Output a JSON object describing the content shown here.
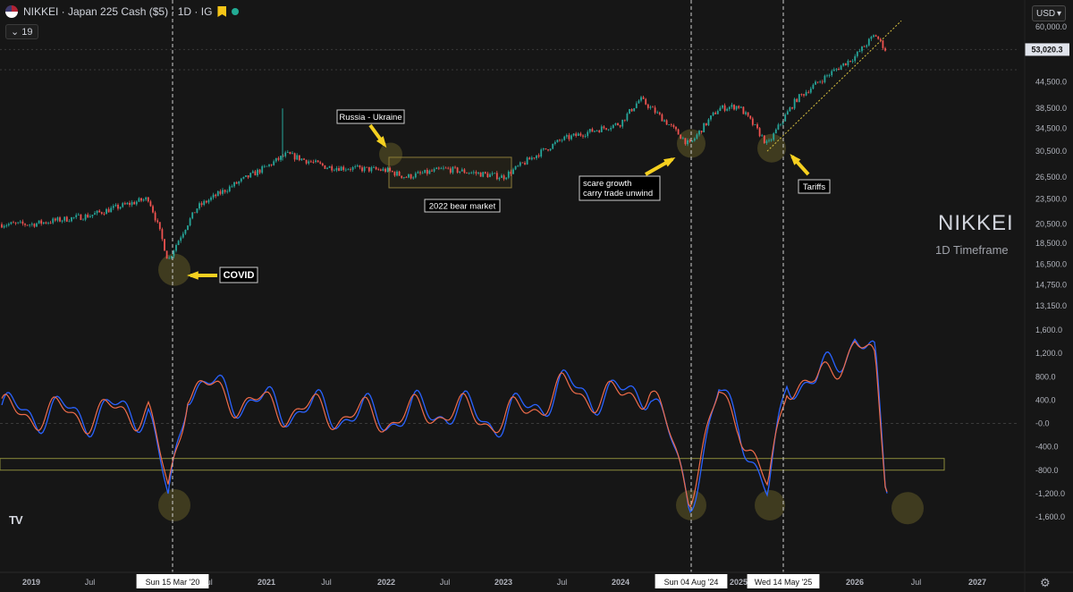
{
  "header": {
    "symbol_title": "NIKKEI · Japan 225 Cash ($5) · 1D · IG",
    "indicator_count": "19"
  },
  "currency": "USD",
  "brand": {
    "title": "NIKKEI",
    "subtitle": "1D Timeframe"
  },
  "price_badge": "53,020.3",
  "price_axis_ticks": [
    "60,000.0",
    "53,020.3",
    "44,500.0",
    "38,500.0",
    "34,500.0",
    "30,500.0",
    "26,500.0",
    "23,500.0",
    "20,500.0",
    "18,500.0",
    "16,500.0",
    "14,750.0",
    "13,150.0"
  ],
  "osc_axis_ticks": [
    "1,600.0",
    "1,200.0",
    "800.0",
    "400.0",
    "-0.0",
    "-400.0",
    "-800.0",
    "-1,200.0",
    "-1,600.0"
  ],
  "time_ticks": [
    "2019",
    "Jul",
    "2020",
    "Jul",
    "2021",
    "Jul",
    "2022",
    "Jul",
    "2023",
    "Jul",
    "2024",
    "Jul",
    "2025",
    "Jul",
    "2026",
    "Jul",
    "2027"
  ],
  "date_badges": [
    "Sun 15 Mar '20",
    "Sun 04 Aug '24",
    "Wed 14 May '25"
  ],
  "annotations": {
    "covid": "COVID",
    "russia": "Russia - Ukraine",
    "bear": "2022 bear market",
    "scare_line1": "scare growth",
    "scare_line2": "carry trade unwind",
    "tariffs": "Tariffs"
  },
  "colors": {
    "background": "#161616",
    "up": "#26a69a",
    "down": "#ef5350",
    "accent": "#f5d020",
    "osc_fast": "#2962ff",
    "osc_slow": "#ef6c4a",
    "highlight": "#6b6b2e"
  },
  "chart_data": [
    {
      "type": "candlestick",
      "title": "NIKKEI · Japan 225 Cash ($5) · 1D · IG",
      "x_range": [
        "2019-01",
        "2027-01"
      ],
      "y_scale": "log",
      "y_range": [
        13150,
        60000
      ],
      "last_price": 53020.3,
      "x": [
        "2019-01",
        "2019-07",
        "2020-01",
        "2020-03",
        "2020-06",
        "2021-01",
        "2021-03",
        "2021-07",
        "2022-01",
        "2022-03",
        "2022-07",
        "2023-01",
        "2023-07",
        "2024-01",
        "2024-03",
        "2024-08",
        "2024-11",
        "2025-01",
        "2025-04",
        "2025-07",
        "2026-01",
        "2026-03",
        "2026-04"
      ],
      "close": [
        20500,
        21500,
        23600,
        16800,
        22500,
        28000,
        30000,
        28000,
        27500,
        26500,
        27700,
        26500,
        32500,
        35500,
        40500,
        31500,
        38500,
        39000,
        31500,
        40500,
        51000,
        57500,
        53020
      ],
      "events": [
        {
          "label": "COVID",
          "date": "2020-03-15"
        },
        {
          "label": "Russia - Ukraine",
          "date": "2022-02"
        },
        {
          "label": "2022 bear market",
          "date": "2022"
        },
        {
          "label": "scare growth carry trade unwind",
          "date": "2024-08-04"
        },
        {
          "label": "Tariffs",
          "date": "2025-04"
        }
      ]
    },
    {
      "type": "line",
      "x_range": [
        "2019-01",
        "2027-01"
      ],
      "y_range": [
        -1600,
        1600
      ],
      "x": [
        "2019-01",
        "2019-07",
        "2020-01",
        "2020-03",
        "2020-05",
        "2021-01",
        "2021-07",
        "2022-01",
        "2022-07",
        "2023-01",
        "2023-07",
        "2024-01",
        "2024-04",
        "2024-08",
        "2024-11",
        "2025-01",
        "2025-04",
        "2025-06",
        "2025-09",
        "2026-01",
        "2026-03",
        "2026-04"
      ],
      "series": [
        {
          "values": [
            200,
            150,
            250,
            -1400,
            700,
            300,
            200,
            100,
            250,
            50,
            600,
            450,
            650,
            -1300,
            450,
            100,
            -1350,
            800,
            650,
            1500,
            1000,
            -1000
          ]
        },
        {
          "values": [
            180,
            140,
            230,
            -1200,
            650,
            280,
            190,
            90,
            230,
            40,
            560,
            420,
            620,
            -1150,
            420,
            90,
            -1200,
            760,
            620,
            1400,
            950,
            -900
          ]
        }
      ]
    }
  ]
}
